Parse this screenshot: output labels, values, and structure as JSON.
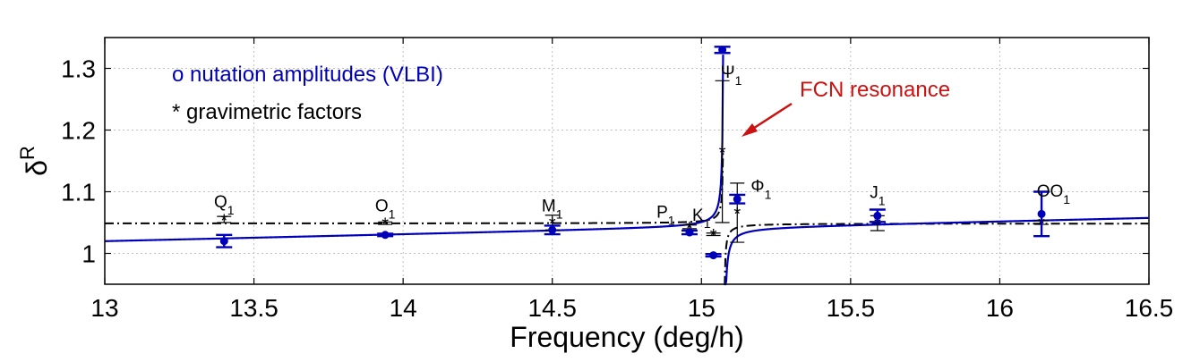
{
  "chart_data": {
    "type": "line",
    "xlabel": "Frequency (deg/h)",
    "ylabel_base": "δ",
    "ylabel_sup": "R",
    "xlim": [
      13,
      16.5
    ],
    "ylim": [
      0.95,
      1.35
    ],
    "grid": true,
    "xticks": [
      13,
      13.5,
      14,
      14.5,
      15,
      15.5,
      16,
      16.5
    ],
    "xtick_labels": [
      "13",
      "13.5",
      "14",
      "14.5",
      "15",
      "15.5",
      "16",
      "16.5"
    ],
    "yticks": [
      1.0,
      1.1,
      1.2,
      1.3
    ],
    "ytick_labels": [
      "1",
      "1.1",
      "1.2",
      "1.3"
    ],
    "legend": [
      {
        "text": "o nutation amplitudes (VLBI)",
        "color": "#0000bb",
        "position": "top-left"
      },
      {
        "text": "* gravimetric factors",
        "color": "#000000",
        "position": "top-left"
      }
    ],
    "annotation": {
      "text": "FCN resonance",
      "color": "#cc1111"
    },
    "fcn_frequency": 15.075,
    "series": [
      {
        "name": "nutation amplitudes (VLBI)",
        "color": "#0000bb",
        "points": [
          {
            "x": 13.4,
            "y": 1.02,
            "err": 0.01
          },
          {
            "x": 13.94,
            "y": 1.03,
            "err": 0.002
          },
          {
            "x": 14.5,
            "y": 1.038,
            "err": 0.007
          },
          {
            "x": 14.96,
            "y": 1.034,
            "err": 0.003
          },
          {
            "x": 15.04,
            "y": 0.997,
            "err": 0.002
          },
          {
            "x": 15.07,
            "y": 1.33,
            "err": 0.005
          },
          {
            "x": 15.12,
            "y": 1.088,
            "err": 0.007
          },
          {
            "x": 15.59,
            "y": 1.061,
            "err": 0.01
          },
          {
            "x": 16.14,
            "y": 1.064,
            "err": 0.036
          }
        ]
      },
      {
        "name": "gravimetric factors",
        "color": "#000000",
        "points": [
          {
            "x": 13.4,
            "y": 1.055,
            "err": 0.005
          },
          {
            "x": 13.94,
            "y": 1.049,
            "err": 0.002
          },
          {
            "x": 14.5,
            "y": 1.05,
            "err": 0.012
          },
          {
            "x": 14.96,
            "y": 1.043,
            "err": 0.003
          },
          {
            "x": 15.04,
            "y": 1.031,
            "err": 0.002
          },
          {
            "x": 15.07,
            "y": 1.165,
            "err": 0.115
          },
          {
            "x": 15.12,
            "y": 1.066,
            "err": 0.048
          },
          {
            "x": 15.59,
            "y": 1.049,
            "err": 0.012
          },
          {
            "x": 16.14,
            "y": 1.05,
            "err": 0.003
          }
        ]
      }
    ],
    "fitted_curve": {
      "name": "resonance fit (nutation)",
      "style": "solid",
      "color": "#0000bb"
    },
    "gravimetric_curve": {
      "name": "resonance fit (gravimetric)",
      "style": "dash-dot",
      "color": "#000000"
    },
    "tide_labels": [
      {
        "base": "Q",
        "sub": "1",
        "x": 13.4,
        "y": 1.075
      },
      {
        "base": "O",
        "sub": "1",
        "x": 13.94,
        "y": 1.068
      },
      {
        "base": "M",
        "sub": "1",
        "x": 14.5,
        "y": 1.068
      },
      {
        "base": "P",
        "sub": "1",
        "x": 14.88,
        "y": 1.058
      },
      {
        "base": "K",
        "sub": "1",
        "x": 15.0,
        "y": 1.053
      },
      {
        "base": "Ψ",
        "sub": "1",
        "x": 15.1,
        "y": 1.285
      },
      {
        "base": "Φ",
        "sub": "1",
        "x": 15.2,
        "y": 1.1
      },
      {
        "base": "J",
        "sub": "1",
        "x": 15.59,
        "y": 1.09
      },
      {
        "base": "OO",
        "sub": "1",
        "x": 16.18,
        "y": 1.092
      }
    ]
  }
}
